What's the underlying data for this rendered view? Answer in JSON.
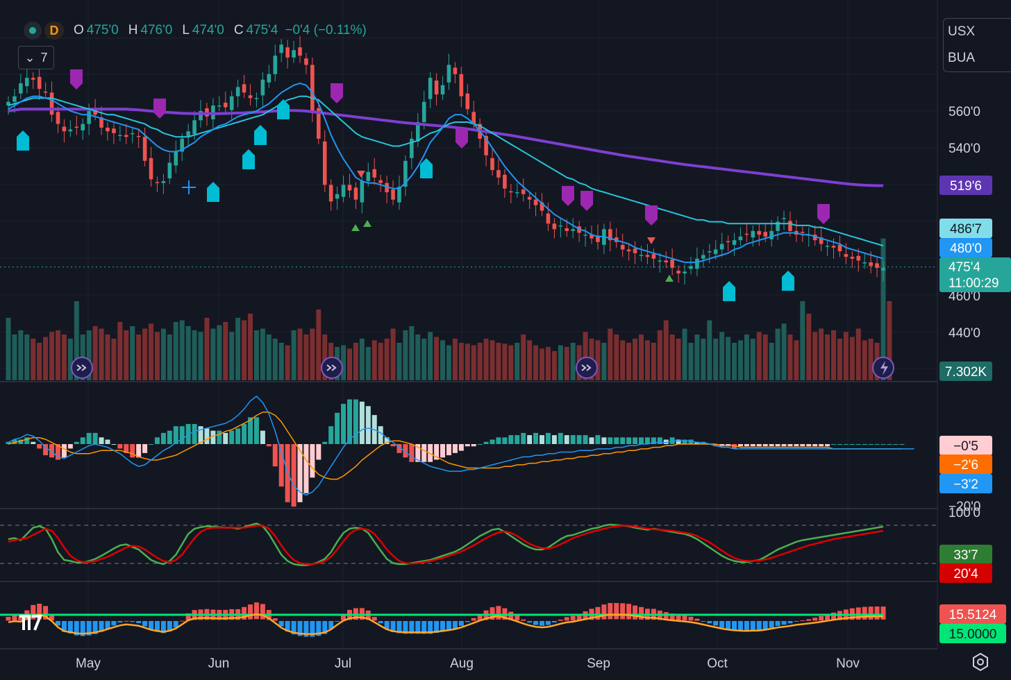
{
  "header": {
    "timeframe": "D",
    "ohlc": {
      "o_label": "O",
      "o": "475'0",
      "h_label": "H",
      "h": "476'0",
      "l_label": "L",
      "l": "474'0",
      "c_label": "C",
      "c": "475'4",
      "change": "−0'4 (−0.11%)"
    },
    "indicator_count": "7"
  },
  "symbols": [
    "USX",
    "BUA"
  ],
  "colors": {
    "up": "#26a69a",
    "down": "#ef5350",
    "ma_fast": "#2196f3",
    "ma_mid": "#26c6da",
    "ma_slow": "#7e3fd1",
    "purple_marker": "#9c27b0",
    "cyan_marker": "#00bcd4"
  },
  "chart_data": [
    {
      "type": "candlestick",
      "panel": "price",
      "x_tick_labels": [
        "May",
        "Jun",
        "Jul",
        "Aug",
        "Sep",
        "Oct",
        "Nov"
      ],
      "y_ticks": [
        "560'0",
        "540'0",
        "460'0",
        "440'0"
      ],
      "ylim": [
        430,
        590
      ],
      "last_price": 475.5,
      "closes": [
        565,
        568,
        575,
        578,
        577,
        572,
        570,
        558,
        553,
        549,
        550,
        551,
        553,
        560,
        558,
        551,
        549,
        548,
        547,
        546,
        548,
        546,
        533,
        523,
        521,
        522,
        532,
        538,
        545,
        549,
        555,
        560,
        557,
        563,
        563,
        562,
        568,
        573,
        570,
        567,
        567,
        577,
        580,
        590,
        596,
        589,
        593,
        590,
        585,
        560,
        545,
        520,
        511,
        515,
        520,
        517,
        512,
        522,
        527,
        524,
        521,
        516,
        512,
        519,
        533,
        545,
        554,
        565,
        578,
        569,
        574,
        585,
        580,
        568,
        561,
        553,
        545,
        536,
        528,
        524,
        518,
        516,
        516,
        515,
        512,
        509,
        506,
        499,
        496,
        498,
        495,
        496,
        494,
        493,
        491,
        489,
        496,
        490,
        489,
        485,
        484,
        483,
        482,
        481,
        480,
        479,
        478,
        475,
        472,
        473,
        476,
        480,
        482,
        484,
        485,
        488,
        489,
        490,
        492,
        493,
        495,
        493,
        492,
        495,
        500,
        502,
        495,
        493,
        494,
        493,
        490,
        488,
        487,
        486,
        484,
        481,
        480,
        479,
        478,
        476,
        475,
        475
      ],
      "ma_fast": [
        561,
        563,
        565,
        567,
        568,
        568,
        567,
        566,
        564,
        562,
        560,
        559,
        558,
        558,
        557,
        556,
        555,
        554,
        553,
        552,
        551,
        550,
        547,
        544,
        541,
        539,
        538,
        538,
        539,
        541,
        543,
        546,
        548,
        550,
        552,
        553,
        555,
        557,
        558,
        559,
        560,
        562,
        564,
        567,
        570,
        572,
        574,
        575,
        574,
        570,
        564,
        556,
        547,
        540,
        534,
        529,
        524,
        522,
        521,
        521,
        520,
        519,
        518,
        518,
        521,
        525,
        530,
        536,
        543,
        547,
        551,
        556,
        558,
        558,
        556,
        553,
        549,
        545,
        540,
        535,
        530,
        526,
        522,
        519,
        516,
        513,
        510,
        507,
        504,
        502,
        500,
        498,
        496,
        495,
        493,
        492,
        492,
        491,
        490,
        489,
        488,
        486,
        485,
        484,
        483,
        482,
        481,
        480,
        479,
        478,
        478,
        478,
        479,
        480,
        481,
        482,
        483,
        485,
        486,
        488,
        489,
        490,
        491,
        492,
        493,
        494,
        494,
        494,
        493,
        493,
        492,
        491,
        490,
        489,
        488,
        486,
        485,
        484,
        483,
        482,
        481,
        480
      ],
      "ma_mid": [
        563,
        564,
        565,
        566,
        567,
        567,
        567,
        567,
        566,
        565,
        564,
        563,
        562,
        561,
        560,
        559,
        558,
        558,
        557,
        556,
        555,
        554,
        553,
        551,
        550,
        548,
        547,
        546,
        546,
        546,
        547,
        548,
        549,
        550,
        551,
        552,
        553,
        554,
        555,
        556,
        557,
        558,
        560,
        562,
        564,
        566,
        567,
        568,
        568,
        567,
        566,
        563,
        560,
        557,
        554,
        551,
        548,
        546,
        545,
        544,
        543,
        542,
        541,
        541,
        542,
        543,
        544,
        546,
        548,
        549,
        551,
        553,
        554,
        554,
        554,
        553,
        552,
        550,
        548,
        546,
        544,
        542,
        540,
        538,
        536,
        534,
        532,
        530,
        528,
        526,
        524,
        523,
        521,
        520,
        518,
        517,
        516,
        515,
        514,
        513,
        512,
        511,
        510,
        509,
        508,
        507,
        506,
        505,
        504,
        503,
        502,
        501,
        501,
        500,
        500,
        500,
        499,
        499,
        499,
        499,
        499,
        499,
        499,
        499,
        499,
        499,
        499,
        498,
        498,
        498,
        497,
        497,
        496,
        495,
        494,
        493,
        492,
        491,
        490,
        489,
        488,
        487
      ],
      "ma_slow": [
        560,
        560.5,
        561,
        561,
        561,
        561,
        561,
        561,
        561,
        561,
        561,
        561,
        561,
        561,
        561,
        561,
        561,
        561,
        561,
        561,
        560.8,
        560.6,
        560.3,
        560,
        559.7,
        559.4,
        559.2,
        559,
        558.8,
        558.7,
        558.6,
        558.6,
        558.6,
        558.6,
        558.6,
        558.7,
        558.8,
        558.9,
        559,
        559.2,
        559.4,
        559.6,
        559.8,
        560,
        560.2,
        560.3,
        560.3,
        560.2,
        560,
        559.6,
        559.2,
        558.8,
        558.4,
        558,
        557.6,
        557.2,
        556.8,
        556.4,
        556,
        555.6,
        555.2,
        554.8,
        554.4,
        554,
        553.6,
        553.3,
        553,
        552.7,
        552.4,
        552.1,
        551.8,
        551.5,
        551.1,
        550.7,
        550.3,
        549.8,
        549.3,
        548.8,
        548.3,
        547.8,
        547.3,
        546.8,
        546.2,
        545.6,
        545,
        544.4,
        543.8,
        543.2,
        542.6,
        542,
        541.4,
        540.8,
        540.2,
        539.6,
        539,
        538.4,
        537.8,
        537.2,
        536.6,
        536,
        535.5,
        535,
        534.5,
        534,
        533.5,
        533,
        532.5,
        532,
        531.5,
        531,
        530.6,
        530.2,
        529.8,
        529.4,
        529,
        528.6,
        528.2,
        527.8,
        527.4,
        527,
        526.6,
        526.2,
        525.8,
        525.4,
        525,
        524.6,
        524.2,
        523.8,
        523.4,
        523,
        522.6,
        522.2,
        521.8,
        521.4,
        521,
        520.6,
        520.3,
        520,
        519.8,
        519.7,
        519.6,
        519.6
      ],
      "value_labels": [
        "519'6",
        "486'7",
        "480'0",
        "475'4",
        "11:00:29"
      ]
    },
    {
      "type": "bar",
      "panel": "volume",
      "value_label": "7.302K",
      "volume": [
        0.75,
        0.55,
        0.6,
        0.55,
        0.5,
        0.45,
        0.52,
        0.58,
        0.6,
        0.55,
        0.5,
        0.95,
        0.55,
        0.6,
        0.65,
        0.62,
        0.55,
        0.5,
        0.7,
        0.6,
        0.65,
        0.55,
        0.62,
        0.68,
        0.58,
        0.62,
        0.55,
        0.7,
        0.72,
        0.65,
        0.6,
        0.58,
        0.75,
        0.62,
        0.66,
        0.7,
        0.58,
        0.75,
        0.72,
        0.8,
        0.6,
        0.62,
        0.55,
        0.5,
        0.45,
        0.42,
        0.6,
        0.62,
        0.55,
        0.62,
        0.85,
        0.55,
        0.45,
        0.4,
        0.42,
        0.38,
        0.45,
        0.5,
        0.4,
        0.48,
        0.45,
        0.5,
        0.62,
        0.45,
        0.6,
        0.65,
        0.55,
        0.5,
        0.58,
        0.52,
        0.48,
        0.42,
        0.5,
        0.45,
        0.44,
        0.42,
        0.45,
        0.5,
        0.48,
        0.45,
        0.44,
        0.42,
        0.45,
        0.55,
        0.48,
        0.42,
        0.38,
        0.4,
        0.35,
        0.42,
        0.4,
        0.45,
        0.42,
        0.58,
        0.5,
        0.48,
        0.45,
        0.62,
        0.55,
        0.48,
        0.45,
        0.5,
        0.55,
        0.48,
        0.45,
        0.6,
        0.72,
        0.55,
        0.5,
        0.62,
        0.45,
        0.55,
        0.5,
        0.72,
        0.5,
        0.58,
        0.52,
        0.45,
        0.48,
        0.55,
        0.5,
        0.58,
        0.55,
        0.45,
        0.62,
        0.68,
        0.55,
        0.48,
        0.95,
        0.8,
        0.58,
        0.62,
        0.55,
        0.6,
        0.5,
        0.58,
        0.52,
        0.62,
        0.48,
        0.5,
        0.45,
        0.62,
        0.95,
        0.0
      ]
    },
    {
      "type": "bar",
      "panel": "macd",
      "value_labels": [
        "−0'5",
        "−2'6",
        "−3'2",
        "−20'0"
      ],
      "macd": [
        1,
        3,
        4,
        6,
        5,
        2,
        -2,
        -5,
        -8,
        -9,
        -7,
        -5,
        -3,
        -1,
        0,
        -1,
        -2,
        -4,
        -6,
        -9,
        -12,
        -14,
        -13,
        -10,
        -7,
        -4,
        -2,
        1,
        3,
        6,
        8,
        9,
        10,
        11,
        12,
        13,
        15,
        18,
        22,
        27,
        30,
        26,
        19,
        8,
        -5,
        -18,
        -26,
        -30,
        -32,
        -30,
        -26,
        -20,
        -14,
        -8,
        -2,
        3,
        6,
        9,
        10,
        9,
        7,
        4,
        1,
        -2,
        -5,
        -8,
        -10,
        -12,
        -14,
        -15,
        -16,
        -17,
        -17,
        -17,
        -16,
        -16,
        -15,
        -14,
        -13,
        -12,
        -11,
        -10,
        -9,
        -8,
        -8,
        -7,
        -7,
        -6,
        -6,
        -5,
        -5,
        -5,
        -4,
        -4,
        -4,
        -3,
        -3,
        -3,
        -2,
        -2,
        -1,
        -1,
        0,
        0,
        1,
        1,
        1,
        2,
        2,
        2,
        2,
        1,
        1,
        0,
        -1,
        -2,
        -2,
        -3,
        -3,
        -3,
        -3,
        -3,
        -3,
        -3,
        -3,
        -3,
        -3,
        -3,
        -3,
        -3,
        -3,
        -3,
        -3,
        -3,
        -3,
        -3,
        -3,
        -3,
        -3,
        -3,
        -3,
        -3,
        -3,
        -3,
        -3,
        -3,
        -3
      ],
      "signal": [
        0,
        1,
        2,
        3,
        4,
        4,
        3,
        1,
        -1,
        -3,
        -5,
        -6,
        -6,
        -6,
        -5,
        -4,
        -4,
        -4,
        -4,
        -5,
        -6,
        -8,
        -9,
        -10,
        -10,
        -9,
        -8,
        -7,
        -5,
        -3,
        -1,
        1,
        3,
        5,
        6,
        8,
        9,
        11,
        13,
        15,
        18,
        20,
        20,
        18,
        14,
        8,
        2,
        -4,
        -10,
        -15,
        -19,
        -21,
        -22,
        -22,
        -20,
        -17,
        -14,
        -10,
        -7,
        -4,
        -1,
        1,
        2,
        2,
        1,
        0,
        -2,
        -4,
        -6,
        -8,
        -10,
        -12,
        -13,
        -14,
        -15,
        -15,
        -15,
        -15,
        -15,
        -15,
        -14,
        -14,
        -13,
        -13,
        -12,
        -12,
        -11,
        -11,
        -10,
        -10,
        -9,
        -9,
        -8,
        -8,
        -7,
        -7,
        -6,
        -6,
        -5,
        -5,
        -4,
        -4,
        -3,
        -3,
        -2,
        -2,
        -1,
        -1,
        0,
        0,
        0,
        0,
        0,
        0,
        0,
        -1,
        -1,
        -1,
        -2,
        -2,
        -2,
        -2,
        -2,
        -2,
        -2,
        -2,
        -2,
        -2,
        -2,
        -2,
        -2,
        -2,
        -2,
        -3,
        -3,
        -3,
        -3,
        -3,
        -3,
        -3,
        -3,
        -3,
        -3,
        -3,
        -3
      ]
    },
    {
      "type": "line",
      "panel": "stochastic",
      "value_labels": [
        "100'0",
        "33'7",
        "20'4"
      ],
      "k": [
        60,
        62,
        58,
        70,
        82,
        85,
        80,
        60,
        35,
        20,
        18,
        15,
        15,
        18,
        22,
        28,
        35,
        42,
        48,
        50,
        45,
        40,
        30,
        20,
        15,
        12,
        18,
        30,
        50,
        70,
        80,
        83,
        85,
        84,
        83,
        82,
        82,
        80,
        83,
        87,
        90,
        85,
        70,
        50,
        30,
        18,
        12,
        10,
        10,
        12,
        16,
        22,
        35,
        55,
        72,
        80,
        82,
        80,
        72,
        55,
        38,
        22,
        14,
        12,
        12,
        14,
        16,
        18,
        20,
        24,
        28,
        32,
        36,
        42,
        50,
        58,
        66,
        72,
        78,
        80,
        74,
        66,
        58,
        50,
        44,
        40,
        40,
        44,
        52,
        60,
        66,
        68,
        72,
        76,
        80,
        82,
        86,
        88,
        87,
        86,
        85,
        82,
        80,
        78,
        80,
        78,
        76,
        74,
        72,
        70,
        66,
        60,
        52,
        44,
        36,
        28,
        22,
        18,
        16,
        16,
        18,
        20,
        26,
        33,
        40,
        45,
        50,
        55,
        58,
        60,
        62,
        64,
        66,
        68,
        70,
        72,
        74,
        76,
        78,
        80,
        82,
        84
      ],
      "d": [
        55,
        58,
        60,
        62,
        68,
        74,
        80,
        76,
        62,
        44,
        28,
        20,
        16,
        16,
        18,
        22,
        26,
        32,
        38,
        44,
        47,
        46,
        40,
        32,
        24,
        18,
        16,
        20,
        30,
        46,
        62,
        74,
        80,
        82,
        82,
        82,
        82,
        82,
        82,
        84,
        86,
        86,
        80,
        66,
        48,
        32,
        20,
        14,
        12,
        12,
        14,
        18,
        26,
        40,
        56,
        70,
        78,
        80,
        78,
        70,
        56,
        40,
        28,
        18,
        14,
        13,
        14,
        16,
        18,
        21,
        24,
        28,
        32,
        36,
        42,
        48,
        55,
        62,
        68,
        73,
        75,
        72,
        66,
        58,
        51,
        46,
        43,
        42,
        45,
        50,
        56,
        62,
        66,
        70,
        74,
        77,
        80,
        83,
        85,
        86,
        86,
        84,
        82,
        80,
        79,
        78,
        77,
        76,
        74,
        72,
        70,
        66,
        60,
        54,
        46,
        38,
        30,
        24,
        20,
        18,
        18,
        19,
        21,
        24,
        28,
        32,
        36,
        40,
        44,
        48,
        51,
        54,
        57,
        60,
        62,
        64,
        66,
        68,
        70,
        72,
        74,
        76
      ]
    },
    {
      "type": "bar",
      "panel": "oscillator",
      "value_labels": [
        "15.5124",
        "15.0000"
      ]
    }
  ]
}
